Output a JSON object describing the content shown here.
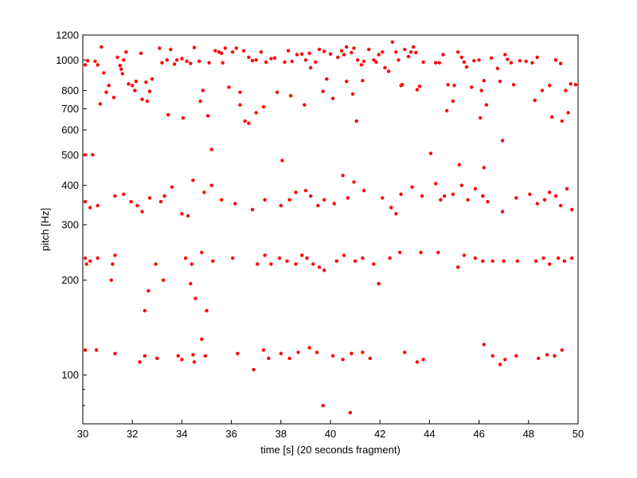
{
  "chart_data": {
    "type": "scatter",
    "title": "",
    "xlabel": "time [s] (20 seconds fragment)",
    "ylabel": "pitch [Hz]",
    "xlim": [
      30,
      50
    ],
    "ylim": [
      70,
      1200
    ],
    "yscale": "log",
    "x_ticks": [
      30,
      32,
      34,
      36,
      38,
      40,
      42,
      44,
      46,
      48,
      50
    ],
    "y_ticks": [
      100,
      200,
      300,
      400,
      500,
      600,
      700,
      800,
      1000,
      1200
    ],
    "grid": false,
    "legend": "none",
    "marker_color": "#ff0000",
    "series": [
      {
        "points": [
          [
            30.1,
            965
          ],
          [
            30.2,
            995
          ],
          [
            30.5,
            990
          ],
          [
            30.6,
            965
          ],
          [
            30.75,
            1100
          ],
          [
            30.85,
            910
          ],
          [
            31.05,
            830
          ],
          [
            31.25,
            760
          ],
          [
            31.4,
            1020
          ],
          [
            31.5,
            960
          ],
          [
            31.55,
            935
          ],
          [
            31.65,
            1000
          ],
          [
            31.75,
            1060
          ],
          [
            31.85,
            840
          ],
          [
            32.0,
            830
          ],
          [
            32.1,
            800
          ],
          [
            32.35,
            1050
          ],
          [
            32.55,
            850
          ],
          [
            32.7,
            795
          ],
          [
            32.8,
            870
          ],
          [
            33.1,
            1090
          ],
          [
            33.2,
            980
          ],
          [
            33.4,
            1000
          ],
          [
            33.55,
            1080
          ],
          [
            33.7,
            970
          ],
          [
            33.8,
            1000
          ],
          [
            34.0,
            1010
          ],
          [
            34.2,
            990
          ],
          [
            34.35,
            975
          ],
          [
            34.5,
            1095
          ],
          [
            34.7,
            990
          ],
          [
            35.1,
            980
          ],
          [
            35.35,
            1070
          ],
          [
            35.5,
            1060
          ],
          [
            35.6,
            1050
          ],
          [
            35.65,
            980
          ],
          [
            35.75,
            1090
          ],
          [
            35.9,
            820
          ],
          [
            36.05,
            1060
          ],
          [
            36.2,
            1090
          ],
          [
            36.35,
            790
          ],
          [
            36.5,
            1070
          ],
          [
            36.7,
            1020
          ],
          [
            36.85,
            995
          ],
          [
            37.0,
            1000
          ],
          [
            37.2,
            1060
          ],
          [
            37.4,
            985
          ],
          [
            37.6,
            1010
          ],
          [
            37.75,
            1015
          ],
          [
            37.85,
            790
          ],
          [
            38.15,
            985
          ],
          [
            38.3,
            1070
          ],
          [
            38.45,
            990
          ],
          [
            38.65,
            1040
          ],
          [
            38.85,
            1045
          ],
          [
            39.0,
            1000
          ],
          [
            39.15,
            1050
          ],
          [
            39.2,
            945
          ],
          [
            39.4,
            985
          ],
          [
            39.55,
            1080
          ],
          [
            39.75,
            1065
          ],
          [
            39.85,
            870
          ],
          [
            40.0,
            1045
          ],
          [
            40.3,
            1020
          ],
          [
            40.45,
            1070
          ],
          [
            40.55,
            1040
          ],
          [
            40.65,
            1100
          ],
          [
            40.85,
            1055
          ],
          [
            40.95,
            1090
          ],
          [
            41.1,
            1000
          ],
          [
            41.25,
            965
          ],
          [
            41.35,
            990
          ],
          [
            41.55,
            1080
          ],
          [
            41.75,
            1000
          ],
          [
            41.85,
            985
          ],
          [
            41.95,
            1040
          ],
          [
            42.1,
            1060
          ],
          [
            42.2,
            945
          ],
          [
            42.5,
            1140
          ],
          [
            42.65,
            1060
          ],
          [
            42.75,
            1000
          ],
          [
            42.85,
            830
          ],
          [
            43.0,
            1080
          ],
          [
            43.15,
            1025
          ],
          [
            43.25,
            1060
          ],
          [
            43.35,
            1100
          ],
          [
            43.45,
            1055
          ],
          [
            43.6,
            825
          ],
          [
            43.75,
            985
          ],
          [
            44.25,
            980
          ],
          [
            44.4,
            980
          ],
          [
            44.55,
            1040
          ],
          [
            44.75,
            835
          ],
          [
            45.0,
            830
          ],
          [
            45.15,
            1060
          ],
          [
            45.3,
            1020
          ],
          [
            45.4,
            985
          ],
          [
            45.5,
            950
          ],
          [
            45.8,
            995
          ],
          [
            46.0,
            1000
          ],
          [
            46.1,
            800
          ],
          [
            46.2,
            860
          ],
          [
            46.5,
            1015
          ],
          [
            46.85,
            855
          ],
          [
            47.05,
            1040
          ],
          [
            47.15,
            1005
          ],
          [
            47.3,
            980
          ],
          [
            47.65,
            995
          ],
          [
            47.9,
            990
          ],
          [
            48.15,
            980
          ],
          [
            48.35,
            1020
          ],
          [
            48.55,
            800
          ],
          [
            48.85,
            830
          ],
          [
            49.1,
            1000
          ],
          [
            49.3,
            975
          ],
          [
            49.5,
            800
          ],
          [
            49.7,
            840
          ],
          [
            49.9,
            835
          ],
          [
            30.7,
            725
          ],
          [
            30.95,
            790
          ],
          [
            31.6,
            905
          ],
          [
            32.15,
            855
          ],
          [
            32.4,
            750
          ],
          [
            32.6,
            740
          ],
          [
            33.45,
            670
          ],
          [
            34.05,
            655
          ],
          [
            34.75,
            740
          ],
          [
            34.85,
            800
          ],
          [
            35.05,
            665
          ],
          [
            36.35,
            720
          ],
          [
            36.55,
            640
          ],
          [
            36.7,
            630
          ],
          [
            37.0,
            680
          ],
          [
            37.3,
            710
          ],
          [
            38.4,
            770
          ],
          [
            38.95,
            720
          ],
          [
            39.7,
            795
          ],
          [
            40.1,
            755
          ],
          [
            40.65,
            855
          ],
          [
            40.9,
            780
          ],
          [
            41.05,
            640
          ],
          [
            41.3,
            860
          ],
          [
            42.35,
            920
          ],
          [
            42.9,
            835
          ],
          [
            43.5,
            805
          ],
          [
            44.7,
            690
          ],
          [
            44.95,
            740
          ],
          [
            45.7,
            820
          ],
          [
            46.05,
            655
          ],
          [
            46.3,
            720
          ],
          [
            46.75,
            940
          ],
          [
            47.4,
            835
          ],
          [
            48.25,
            745
          ],
          [
            48.95,
            660
          ],
          [
            49.35,
            640
          ],
          [
            49.6,
            680
          ],
          [
            30.1,
            500
          ],
          [
            30.4,
            500
          ],
          [
            35.2,
            520
          ],
          [
            38.05,
            480
          ],
          [
            44.05,
            505
          ],
          [
            45.2,
            465
          ],
          [
            46.2,
            455
          ],
          [
            46.95,
            555
          ],
          [
            30.1,
            355
          ],
          [
            30.3,
            340
          ],
          [
            30.6,
            345
          ],
          [
            31.3,
            370
          ],
          [
            31.65,
            375
          ],
          [
            31.95,
            355
          ],
          [
            32.2,
            345
          ],
          [
            32.4,
            330
          ],
          [
            32.7,
            365
          ],
          [
            33.15,
            355
          ],
          [
            33.3,
            370
          ],
          [
            33.6,
            395
          ],
          [
            34.0,
            325
          ],
          [
            34.25,
            320
          ],
          [
            34.45,
            415
          ],
          [
            34.9,
            380
          ],
          [
            35.2,
            400
          ],
          [
            35.6,
            360
          ],
          [
            36.15,
            350
          ],
          [
            36.85,
            335
          ],
          [
            37.35,
            360
          ],
          [
            38.0,
            345
          ],
          [
            38.35,
            360
          ],
          [
            38.6,
            380
          ],
          [
            39.0,
            385
          ],
          [
            39.2,
            370
          ],
          [
            39.5,
            345
          ],
          [
            39.75,
            360
          ],
          [
            40.15,
            350
          ],
          [
            40.5,
            430
          ],
          [
            40.7,
            365
          ],
          [
            40.95,
            410
          ],
          [
            41.35,
            385
          ],
          [
            42.1,
            365
          ],
          [
            42.45,
            340
          ],
          [
            42.65,
            325
          ],
          [
            42.85,
            375
          ],
          [
            43.3,
            395
          ],
          [
            43.7,
            370
          ],
          [
            44.25,
            405
          ],
          [
            44.45,
            360
          ],
          [
            44.6,
            370
          ],
          [
            44.95,
            375
          ],
          [
            45.3,
            400
          ],
          [
            45.55,
            360
          ],
          [
            45.85,
            390
          ],
          [
            46.15,
            370
          ],
          [
            46.35,
            355
          ],
          [
            46.95,
            330
          ],
          [
            47.5,
            365
          ],
          [
            48.05,
            375
          ],
          [
            48.35,
            350
          ],
          [
            48.65,
            360
          ],
          [
            48.85,
            380
          ],
          [
            49.1,
            370
          ],
          [
            49.3,
            345
          ],
          [
            49.55,
            390
          ],
          [
            49.75,
            335
          ],
          [
            30.1,
            235
          ],
          [
            30.15,
            225
          ],
          [
            30.3,
            230
          ],
          [
            30.6,
            235
          ],
          [
            31.2,
            225
          ],
          [
            31.3,
            240
          ],
          [
            32.95,
            225
          ],
          [
            34.15,
            235
          ],
          [
            34.4,
            225
          ],
          [
            34.8,
            245
          ],
          [
            35.25,
            230
          ],
          [
            36.05,
            235
          ],
          [
            37.05,
            225
          ],
          [
            37.35,
            240
          ],
          [
            37.6,
            225
          ],
          [
            37.95,
            235
          ],
          [
            38.25,
            230
          ],
          [
            38.6,
            225
          ],
          [
            38.85,
            240
          ],
          [
            39.05,
            235
          ],
          [
            39.3,
            225
          ],
          [
            39.55,
            220
          ],
          [
            39.75,
            215
          ],
          [
            40.25,
            230
          ],
          [
            40.55,
            240
          ],
          [
            41.0,
            230
          ],
          [
            41.3,
            235
          ],
          [
            41.75,
            225
          ],
          [
            41.95,
            195
          ],
          [
            42.4,
            235
          ],
          [
            42.8,
            245
          ],
          [
            43.65,
            245
          ],
          [
            44.35,
            245
          ],
          [
            45.15,
            220
          ],
          [
            45.4,
            240
          ],
          [
            45.85,
            235
          ],
          [
            46.15,
            230
          ],
          [
            46.55,
            230
          ],
          [
            47.0,
            230
          ],
          [
            47.55,
            230
          ],
          [
            48.3,
            230
          ],
          [
            48.6,
            235
          ],
          [
            48.85,
            225
          ],
          [
            49.2,
            235
          ],
          [
            49.45,
            230
          ],
          [
            49.75,
            235
          ],
          [
            31.15,
            200
          ],
          [
            32.65,
            185
          ],
          [
            33.25,
            200
          ],
          [
            34.35,
            195
          ],
          [
            34.55,
            175
          ],
          [
            35.0,
            160
          ],
          [
            32.5,
            160
          ],
          [
            30.1,
            120
          ],
          [
            30.55,
            120
          ],
          [
            31.3,
            117
          ],
          [
            32.3,
            110
          ],
          [
            32.5,
            115
          ],
          [
            33.0,
            113
          ],
          [
            33.85,
            115
          ],
          [
            34.0,
            112
          ],
          [
            34.45,
            116
          ],
          [
            34.5,
            110
          ],
          [
            34.8,
            130
          ],
          [
            34.95,
            115
          ],
          [
            36.25,
            117
          ],
          [
            36.9,
            104
          ],
          [
            37.3,
            120
          ],
          [
            37.5,
            113
          ],
          [
            38.0,
            117
          ],
          [
            38.35,
            113
          ],
          [
            38.7,
            118
          ],
          [
            39.15,
            122
          ],
          [
            39.45,
            118
          ],
          [
            40.1,
            115
          ],
          [
            40.5,
            112
          ],
          [
            40.85,
            117
          ],
          [
            41.3,
            118
          ],
          [
            41.6,
            113
          ],
          [
            43.0,
            118
          ],
          [
            43.5,
            110
          ],
          [
            43.75,
            112
          ],
          [
            46.2,
            125
          ],
          [
            46.55,
            115
          ],
          [
            46.85,
            108
          ],
          [
            47.05,
            112
          ],
          [
            47.5,
            115
          ],
          [
            48.4,
            113
          ],
          [
            48.75,
            116
          ],
          [
            49.05,
            115
          ],
          [
            49.35,
            120
          ],
          [
            39.7,
            80
          ],
          [
            40.8,
            76
          ]
        ]
      }
    ]
  }
}
